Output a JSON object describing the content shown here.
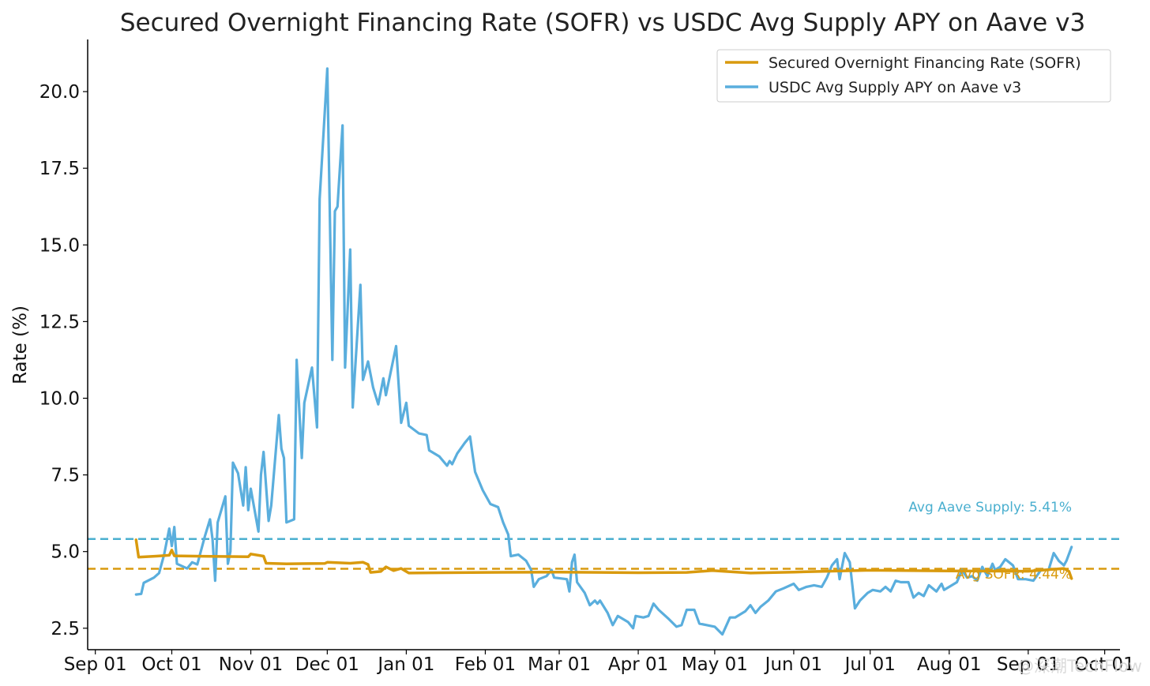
{
  "chart_data": {
    "type": "line",
    "title": "Secured Overnight Financing Rate (SOFR) vs USDC Avg Supply APY on Aave v3",
    "xlabel": "",
    "ylabel": "Rate (%)",
    "x_range": [
      "2023-08-29",
      "2024-10-07"
    ],
    "ylim": [
      1.8,
      21.7
    ],
    "y_ticks": [
      2.5,
      5.0,
      7.5,
      10.0,
      12.5,
      15.0,
      17.5,
      20.0
    ],
    "y_tick_labels": [
      "2.5",
      "5.0",
      "7.5",
      "10.0",
      "12.5",
      "15.0",
      "17.5",
      "20.0"
    ],
    "x_ticks": [
      "2023-09-01",
      "2023-10-01",
      "2023-11-01",
      "2023-12-01",
      "2024-01-01",
      "2024-02-01",
      "2024-03-01",
      "2024-04-01",
      "2024-05-01",
      "2024-06-01",
      "2024-07-01",
      "2024-08-01",
      "2024-09-01",
      "2024-10-01"
    ],
    "x_tick_labels": [
      "Sep 01",
      "Oct 01",
      "Nov 01",
      "Dec 01",
      "Jan 01",
      "Feb 01",
      "Mar 01",
      "Apr 01",
      "May 01",
      "Jun 01",
      "Jul 01",
      "Aug 01",
      "Sep 01",
      "Oct 01"
    ],
    "grid": false,
    "legend_position": "top-right",
    "series": [
      {
        "name": "Secured Overnight Financing Rate (SOFR)",
        "color": "#d99a0e",
        "points": [
          [
            "2023-09-17",
            5.38
          ],
          [
            "2023-09-18",
            4.82
          ],
          [
            "2023-09-25",
            4.85
          ],
          [
            "2023-09-30",
            4.88
          ],
          [
            "2023-10-01",
            5.05
          ],
          [
            "2023-10-02",
            4.86
          ],
          [
            "2023-10-10",
            4.85
          ],
          [
            "2023-10-20",
            4.84
          ],
          [
            "2023-10-31",
            4.83
          ],
          [
            "2023-11-01",
            4.92
          ],
          [
            "2023-11-06",
            4.85
          ],
          [
            "2023-11-07",
            4.62
          ],
          [
            "2023-11-15",
            4.6
          ],
          [
            "2023-11-30",
            4.61
          ],
          [
            "2023-12-01",
            4.65
          ],
          [
            "2023-12-10",
            4.62
          ],
          [
            "2023-12-15",
            4.65
          ],
          [
            "2023-12-17",
            4.58
          ],
          [
            "2023-12-18",
            4.32
          ],
          [
            "2023-12-22",
            4.35
          ],
          [
            "2023-12-24",
            4.5
          ],
          [
            "2023-12-27",
            4.38
          ],
          [
            "2023-12-30",
            4.45
          ],
          [
            "2024-01-02",
            4.3
          ],
          [
            "2024-01-15",
            4.31
          ],
          [
            "2024-02-01",
            4.32
          ],
          [
            "2024-03-01",
            4.33
          ],
          [
            "2024-04-01",
            4.31
          ],
          [
            "2024-04-20",
            4.32
          ],
          [
            "2024-04-30",
            4.38
          ],
          [
            "2024-05-15",
            4.3
          ],
          [
            "2024-06-01",
            4.33
          ],
          [
            "2024-07-01",
            4.39
          ],
          [
            "2024-08-01",
            4.37
          ],
          [
            "2024-09-01",
            4.36
          ],
          [
            "2024-09-15",
            4.45
          ],
          [
            "2024-09-17",
            4.35
          ],
          [
            "2024-09-18",
            4.12
          ]
        ]
      },
      {
        "name": "USDC Avg Supply APY on Aave v3",
        "color": "#5aaedd",
        "points": [
          [
            "2023-09-17",
            3.6
          ],
          [
            "2023-09-19",
            3.62
          ],
          [
            "2023-09-20",
            3.98
          ],
          [
            "2023-09-24",
            4.15
          ],
          [
            "2023-09-26",
            4.3
          ],
          [
            "2023-09-28",
            4.9
          ],
          [
            "2023-09-30",
            5.75
          ],
          [
            "2023-10-01",
            5.18
          ],
          [
            "2023-10-02",
            5.8
          ],
          [
            "2023-10-03",
            4.6
          ],
          [
            "2023-10-07",
            4.45
          ],
          [
            "2023-10-09",
            4.65
          ],
          [
            "2023-10-11",
            4.58
          ],
          [
            "2023-10-14",
            5.5
          ],
          [
            "2023-10-16",
            6.05
          ],
          [
            "2023-10-17",
            5.4
          ],
          [
            "2023-10-18",
            4.05
          ],
          [
            "2023-10-19",
            5.95
          ],
          [
            "2023-10-22",
            6.8
          ],
          [
            "2023-10-23",
            4.6
          ],
          [
            "2023-10-24",
            5.0
          ],
          [
            "2023-10-25",
            7.9
          ],
          [
            "2023-10-27",
            7.55
          ],
          [
            "2023-10-29",
            6.5
          ],
          [
            "2023-10-30",
            7.75
          ],
          [
            "2023-10-31",
            6.35
          ],
          [
            "2023-11-01",
            7.05
          ],
          [
            "2023-11-04",
            5.65
          ],
          [
            "2023-11-05",
            7.5
          ],
          [
            "2023-11-06",
            8.25
          ],
          [
            "2023-11-08",
            6.0
          ],
          [
            "2023-11-09",
            6.5
          ],
          [
            "2023-11-12",
            9.45
          ],
          [
            "2023-11-13",
            8.35
          ],
          [
            "2023-11-14",
            8.05
          ],
          [
            "2023-11-15",
            5.95
          ],
          [
            "2023-11-18",
            6.05
          ],
          [
            "2023-11-19",
            11.25
          ],
          [
            "2023-11-21",
            8.05
          ],
          [
            "2023-11-22",
            9.85
          ],
          [
            "2023-11-25",
            11.0
          ],
          [
            "2023-11-27",
            9.05
          ],
          [
            "2023-11-28",
            16.5
          ],
          [
            "2023-11-30",
            19.3
          ],
          [
            "2023-12-01",
            20.75
          ],
          [
            "2023-12-03",
            11.25
          ],
          [
            "2023-12-04",
            16.1
          ],
          [
            "2023-12-05",
            16.25
          ],
          [
            "2023-12-07",
            18.9
          ],
          [
            "2023-12-08",
            11.0
          ],
          [
            "2023-12-10",
            14.85
          ],
          [
            "2023-12-11",
            9.7
          ],
          [
            "2023-12-14",
            13.7
          ],
          [
            "2023-12-15",
            10.6
          ],
          [
            "2023-12-17",
            11.2
          ],
          [
            "2023-12-19",
            10.35
          ],
          [
            "2023-12-21",
            9.8
          ],
          [
            "2023-12-23",
            10.65
          ],
          [
            "2023-12-24",
            10.1
          ],
          [
            "2023-12-28",
            11.7
          ],
          [
            "2023-12-30",
            9.2
          ],
          [
            "2024-01-01",
            9.85
          ],
          [
            "2024-01-02",
            9.1
          ],
          [
            "2024-01-06",
            8.85
          ],
          [
            "2024-01-09",
            8.8
          ],
          [
            "2024-01-10",
            8.3
          ],
          [
            "2024-01-14",
            8.1
          ],
          [
            "2024-01-17",
            7.8
          ],
          [
            "2024-01-18",
            7.95
          ],
          [
            "2024-01-19",
            7.85
          ],
          [
            "2024-01-21",
            8.2
          ],
          [
            "2024-01-24",
            8.55
          ],
          [
            "2024-01-26",
            8.75
          ],
          [
            "2024-01-28",
            7.6
          ],
          [
            "2024-01-31",
            7.0
          ],
          [
            "2024-02-03",
            6.55
          ],
          [
            "2024-02-06",
            6.45
          ],
          [
            "2024-02-08",
            5.95
          ],
          [
            "2024-02-10",
            5.55
          ],
          [
            "2024-02-11",
            4.85
          ],
          [
            "2024-02-14",
            4.9
          ],
          [
            "2024-02-17",
            4.7
          ],
          [
            "2024-02-19",
            4.4
          ],
          [
            "2024-02-20",
            3.85
          ],
          [
            "2024-02-22",
            4.1
          ],
          [
            "2024-02-25",
            4.2
          ],
          [
            "2024-02-27",
            4.4
          ],
          [
            "2024-02-28",
            4.15
          ],
          [
            "2024-03-04",
            4.1
          ],
          [
            "2024-03-05",
            3.7
          ],
          [
            "2024-03-06",
            4.65
          ],
          [
            "2024-03-07",
            4.9
          ],
          [
            "2024-03-08",
            4.0
          ],
          [
            "2024-03-11",
            3.65
          ],
          [
            "2024-03-13",
            3.25
          ],
          [
            "2024-03-15",
            3.4
          ],
          [
            "2024-03-16",
            3.3
          ],
          [
            "2024-03-17",
            3.4
          ],
          [
            "2024-03-20",
            3.0
          ],
          [
            "2024-03-22",
            2.6
          ],
          [
            "2024-03-24",
            2.9
          ],
          [
            "2024-03-28",
            2.7
          ],
          [
            "2024-03-30",
            2.5
          ],
          [
            "2024-03-31",
            2.9
          ],
          [
            "2024-04-03",
            2.85
          ],
          [
            "2024-04-05",
            2.9
          ],
          [
            "2024-04-07",
            3.3
          ],
          [
            "2024-04-09",
            3.1
          ],
          [
            "2024-04-11",
            2.95
          ],
          [
            "2024-04-13",
            2.8
          ],
          [
            "2024-04-16",
            2.55
          ],
          [
            "2024-04-18",
            2.6
          ],
          [
            "2024-04-20",
            3.1
          ],
          [
            "2024-04-23",
            3.1
          ],
          [
            "2024-04-25",
            2.65
          ],
          [
            "2024-04-28",
            2.6
          ],
          [
            "2024-05-01",
            2.55
          ],
          [
            "2024-05-04",
            2.3
          ],
          [
            "2024-05-07",
            2.85
          ],
          [
            "2024-05-09",
            2.85
          ],
          [
            "2024-05-11",
            2.95
          ],
          [
            "2024-05-13",
            3.05
          ],
          [
            "2024-05-15",
            3.25
          ],
          [
            "2024-05-17",
            3.0
          ],
          [
            "2024-05-19",
            3.2
          ],
          [
            "2024-05-22",
            3.4
          ],
          [
            "2024-05-25",
            3.7
          ],
          [
            "2024-05-28",
            3.8
          ],
          [
            "2024-06-01",
            3.95
          ],
          [
            "2024-06-03",
            3.75
          ],
          [
            "2024-06-06",
            3.85
          ],
          [
            "2024-06-09",
            3.9
          ],
          [
            "2024-06-12",
            3.85
          ],
          [
            "2024-06-14",
            4.15
          ],
          [
            "2024-06-16",
            4.55
          ],
          [
            "2024-06-18",
            4.75
          ],
          [
            "2024-06-19",
            4.1
          ],
          [
            "2024-06-21",
            4.95
          ],
          [
            "2024-06-23",
            4.65
          ],
          [
            "2024-06-25",
            3.15
          ],
          [
            "2024-06-27",
            3.4
          ],
          [
            "2024-06-30",
            3.65
          ],
          [
            "2024-07-02",
            3.75
          ],
          [
            "2024-07-05",
            3.7
          ],
          [
            "2024-07-07",
            3.85
          ],
          [
            "2024-07-09",
            3.7
          ],
          [
            "2024-07-11",
            4.05
          ],
          [
            "2024-07-13",
            4.0
          ],
          [
            "2024-07-16",
            4.0
          ],
          [
            "2024-07-18",
            3.5
          ],
          [
            "2024-07-20",
            3.65
          ],
          [
            "2024-07-22",
            3.55
          ],
          [
            "2024-07-24",
            3.9
          ],
          [
            "2024-07-27",
            3.7
          ],
          [
            "2024-07-29",
            3.95
          ],
          [
            "2024-07-30",
            3.75
          ],
          [
            "2024-08-01",
            3.85
          ],
          [
            "2024-08-04",
            4.0
          ],
          [
            "2024-08-06",
            4.4
          ],
          [
            "2024-08-08",
            4.15
          ],
          [
            "2024-08-10",
            4.2
          ],
          [
            "2024-08-12",
            4.05
          ],
          [
            "2024-08-14",
            4.5
          ],
          [
            "2024-08-16",
            4.2
          ],
          [
            "2024-08-18",
            4.6
          ],
          [
            "2024-08-19",
            4.4
          ],
          [
            "2024-08-21",
            4.5
          ],
          [
            "2024-08-23",
            4.75
          ],
          [
            "2024-08-26",
            4.55
          ],
          [
            "2024-08-28",
            4.1
          ],
          [
            "2024-08-31",
            4.1
          ],
          [
            "2024-09-03",
            4.05
          ],
          [
            "2024-09-06",
            4.4
          ],
          [
            "2024-09-09",
            4.4
          ],
          [
            "2024-09-11",
            4.95
          ],
          [
            "2024-09-13",
            4.7
          ],
          [
            "2024-09-15",
            4.55
          ],
          [
            "2024-09-16",
            4.7
          ],
          [
            "2024-09-18",
            5.15
          ]
        ]
      }
    ],
    "reference_lines": [
      {
        "label": "Avg Aave Supply: 5.41%",
        "value": 5.41,
        "color": "#4aafcf"
      },
      {
        "label": "Avg SOFR: 4.44%",
        "value": 4.44,
        "color": "#d99a0e"
      }
    ],
    "watermark": "@深潮TechFlow"
  }
}
